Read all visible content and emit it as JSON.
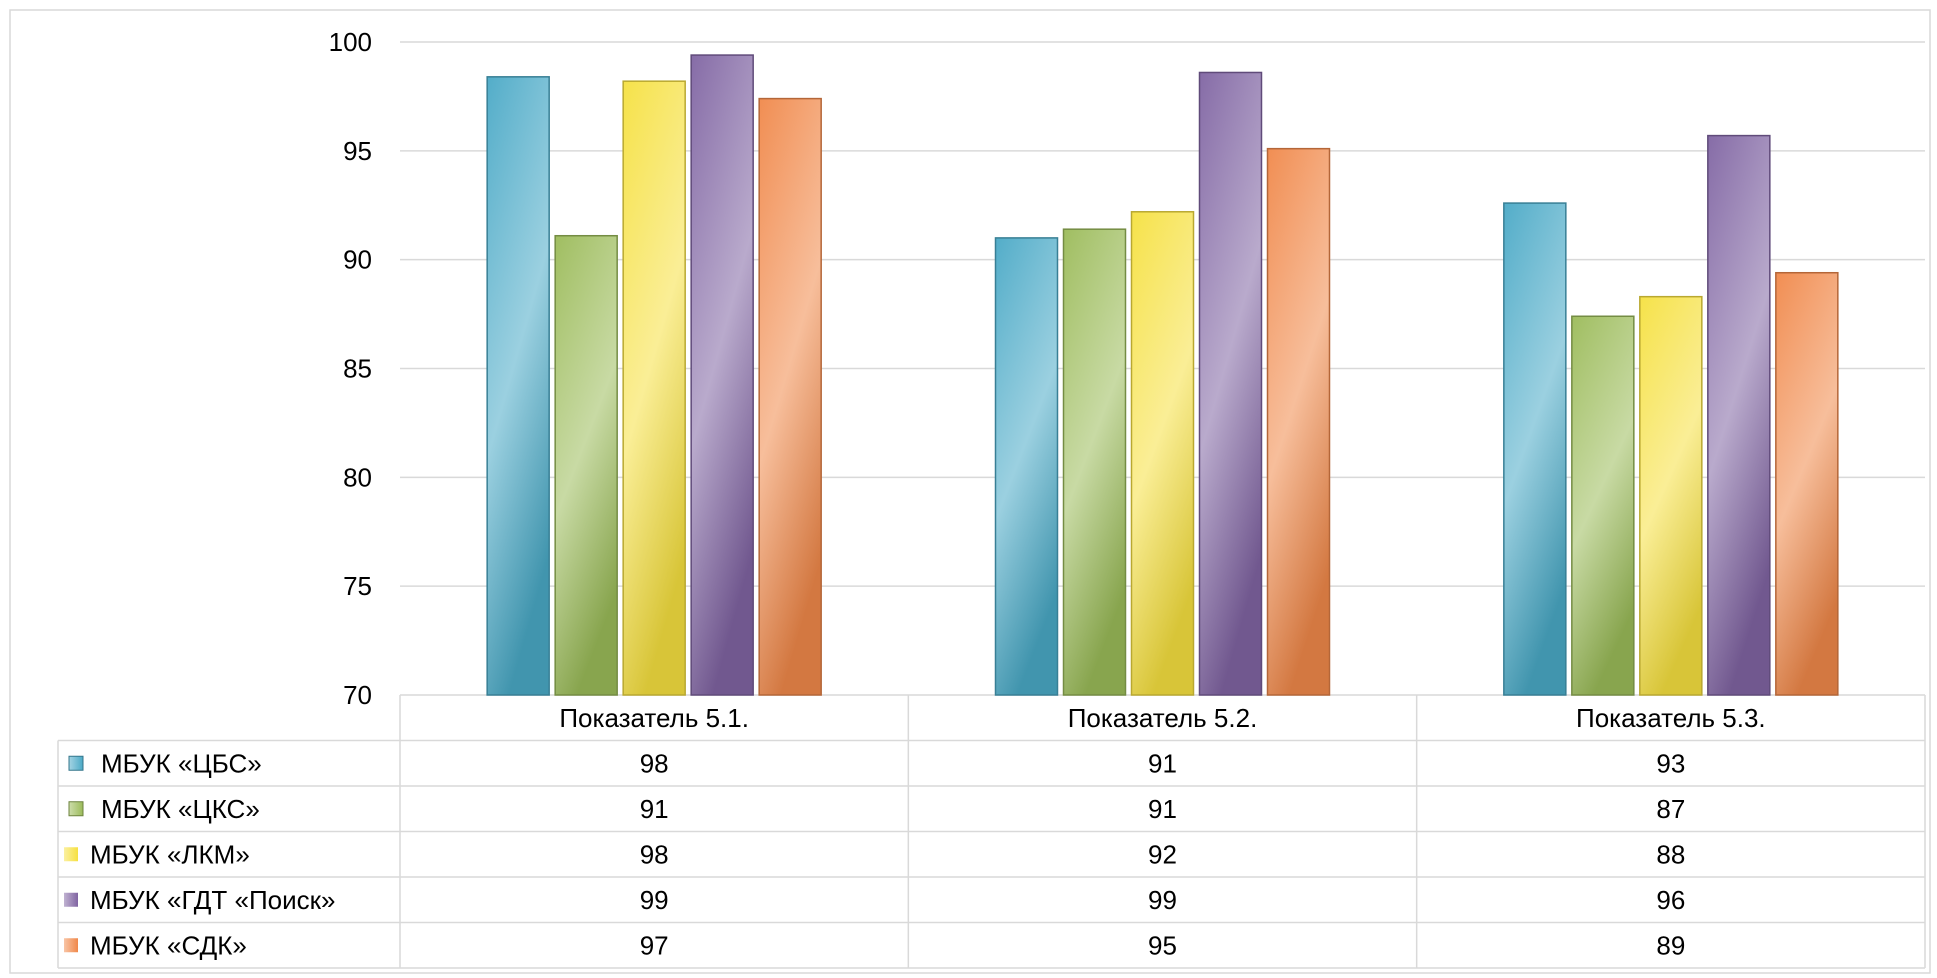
{
  "chart_data": {
    "type": "bar",
    "categories": [
      "Показатель  5.1.",
      "Показатель 5.2.",
      "Показатель 5.3."
    ],
    "series": [
      {
        "name": "МБУК «ЦБС»",
        "values": [
          98,
          91,
          93
        ],
        "exact": [
          98.4,
          91.0,
          92.6
        ],
        "color": "#4aa9c6"
      },
      {
        "name": "МБУК «ЦКС»",
        "values": [
          91,
          91,
          87
        ],
        "exact": [
          91.1,
          91.4,
          87.4
        ],
        "color": "#9bbb59"
      },
      {
        "name": "МБУК «ЛКМ»",
        "values": [
          98,
          92,
          88
        ],
        "exact": [
          98.2,
          92.2,
          88.3
        ],
        "color": "#f6e040"
      },
      {
        "name": "МБУК «ГДТ «Поиск»",
        "values": [
          99,
          99,
          96
        ],
        "exact": [
          99.4,
          98.6,
          95.7
        ],
        "color": "#8064a2"
      },
      {
        "name": "МБУК «СДК»",
        "values": [
          97,
          95,
          89
        ],
        "exact": [
          97.4,
          95.1,
          89.4
        ],
        "color": "#f0884a"
      }
    ],
    "yticks": [
      70,
      75,
      80,
      85,
      90,
      95,
      100
    ],
    "ylim": [
      70,
      100
    ],
    "grid": true,
    "data_table": true,
    "legend": "data-table"
  }
}
